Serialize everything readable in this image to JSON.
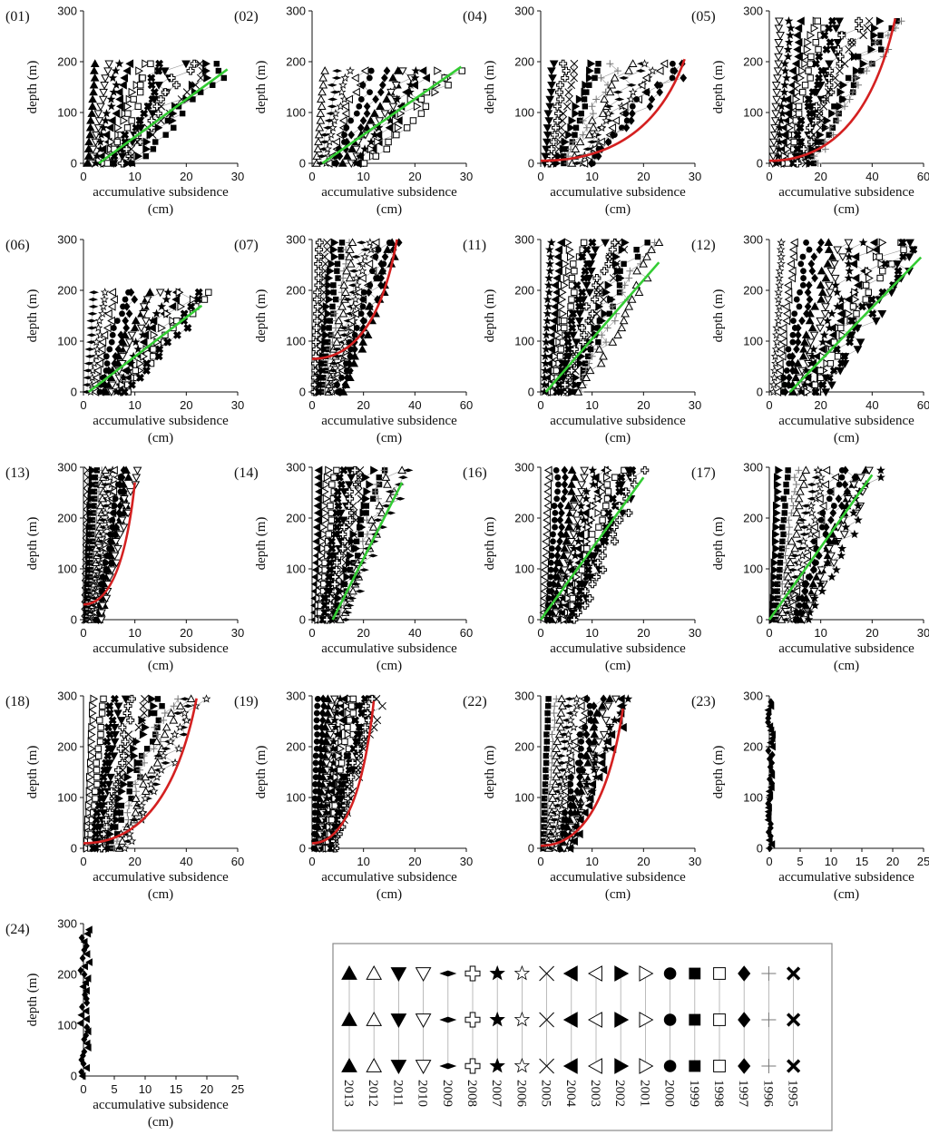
{
  "figure": {
    "xlabel_line1": "accumulative subsidence",
    "xlabel_line2": "(cm)",
    "ylabel": "depth (m)"
  },
  "colors": {
    "fit_red": "#d42020",
    "fit_green": "#33cc33",
    "axis": "#111111",
    "box": "#888888"
  },
  "chart_data": [
    {
      "id": "(01)",
      "type": "scatter",
      "xlim": [
        0,
        30
      ],
      "ylim": [
        0,
        300
      ],
      "xticks": [
        "0",
        "10",
        "20",
        "30"
      ],
      "yticks": [
        "0",
        "100",
        "200",
        "300"
      ],
      "maxdepth": 200,
      "maxsub": 28,
      "fit": {
        "kind": "linear",
        "color": "green",
        "from": [
          3,
          0
        ],
        "to": [
          28,
          185
        ]
      },
      "single_stack": false
    },
    {
      "id": "(02)",
      "type": "scatter",
      "xlim": [
        0,
        30
      ],
      "ylim": [
        0,
        300
      ],
      "xticks": [
        "0",
        "10",
        "20",
        "30"
      ],
      "yticks": [
        "0",
        "100",
        "200",
        "300"
      ],
      "maxdepth": 195,
      "maxsub": 30,
      "fit": {
        "kind": "linear",
        "color": "green",
        "from": [
          2,
          0
        ],
        "to": [
          29,
          190
        ]
      },
      "single_stack": false
    },
    {
      "id": "(04)",
      "type": "scatter",
      "xlim": [
        0,
        30
      ],
      "ylim": [
        0,
        300
      ],
      "xticks": [
        "0",
        "10",
        "20",
        "30"
      ],
      "yticks": [
        "0",
        "100",
        "200",
        "300"
      ],
      "maxdepth": 200,
      "maxsub": 29,
      "fit": {
        "kind": "curve",
        "color": "red",
        "from": [
          0,
          5
        ],
        "to": [
          28,
          205
        ]
      },
      "single_stack": false
    },
    {
      "id": "(05)",
      "type": "scatter",
      "xlim": [
        0,
        60
      ],
      "ylim": [
        0,
        300
      ],
      "xticks": [
        "0",
        "20",
        "40",
        "60"
      ],
      "yticks": [
        "0",
        "100",
        "200",
        "300"
      ],
      "maxdepth": 280,
      "maxsub": 50,
      "fit": {
        "kind": "curve",
        "color": "red",
        "from": [
          0,
          5
        ],
        "to": [
          49,
          285
        ]
      },
      "single_stack": false
    },
    {
      "id": "(06)",
      "type": "scatter",
      "xlim": [
        0,
        30
      ],
      "ylim": [
        0,
        300
      ],
      "xticks": [
        "0",
        "10",
        "20",
        "30"
      ],
      "yticks": [
        "0",
        "100",
        "200",
        "300"
      ],
      "maxdepth": 200,
      "maxsub": 25,
      "fit": {
        "kind": "linear",
        "color": "green",
        "from": [
          1,
          0
        ],
        "to": [
          23,
          170
        ]
      },
      "single_stack": false
    },
    {
      "id": "(07)",
      "type": "scatter",
      "xlim": [
        0,
        60
      ],
      "ylim": [
        0,
        300
      ],
      "xticks": [
        "0",
        "20",
        "40",
        "60"
      ],
      "yticks": [
        "0",
        "100",
        "200",
        "300"
      ],
      "maxdepth": 300,
      "maxsub": 34,
      "fit": {
        "kind": "curve",
        "color": "red",
        "from": [
          0,
          65
        ],
        "to": [
          33,
          300
        ]
      },
      "single_stack": false
    },
    {
      "id": "(11)",
      "type": "scatter",
      "xlim": [
        0,
        30
      ],
      "ylim": [
        0,
        300
      ],
      "xticks": [
        "0",
        "10",
        "20",
        "30"
      ],
      "yticks": [
        "0",
        "100",
        "200",
        "300"
      ],
      "maxdepth": 295,
      "maxsub": 23,
      "fit": {
        "kind": "linear",
        "color": "green",
        "from": [
          1,
          0
        ],
        "to": [
          23,
          255
        ]
      },
      "single_stack": false
    },
    {
      "id": "(12)",
      "type": "scatter",
      "xlim": [
        0,
        60
      ],
      "ylim": [
        0,
        300
      ],
      "xticks": [
        "0",
        "20",
        "40",
        "60"
      ],
      "yticks": [
        "0",
        "100",
        "200",
        "300"
      ],
      "maxdepth": 295,
      "maxsub": 59,
      "fit": {
        "kind": "linear",
        "color": "green",
        "from": [
          8,
          0
        ],
        "to": [
          59,
          265
        ]
      },
      "single_stack": false
    },
    {
      "id": "(13)",
      "type": "scatter",
      "xlim": [
        0,
        30
      ],
      "ylim": [
        0,
        300
      ],
      "xticks": [
        "0",
        "10",
        "20",
        "30"
      ],
      "yticks": [
        "0",
        "100",
        "200",
        "300"
      ],
      "maxdepth": 300,
      "maxsub": 10,
      "fit": {
        "kind": "curve",
        "color": "red",
        "from": [
          0,
          30
        ],
        "to": [
          10,
          270
        ]
      },
      "single_stack": false
    },
    {
      "id": "(14)",
      "type": "scatter",
      "xlim": [
        0,
        60
      ],
      "ylim": [
        0,
        300
      ],
      "xticks": [
        "0",
        "20",
        "40",
        "60"
      ],
      "yticks": [
        "0",
        "100",
        "200",
        "300"
      ],
      "maxdepth": 300,
      "maxsub": 36,
      "fit": {
        "kind": "linear",
        "color": "green",
        "from": [
          8,
          0
        ],
        "to": [
          35,
          270
        ]
      },
      "single_stack": false
    },
    {
      "id": "(16)",
      "type": "scatter",
      "xlim": [
        0,
        30
      ],
      "ylim": [
        0,
        300
      ],
      "xticks": [
        "0",
        "10",
        "20",
        "30"
      ],
      "yticks": [
        "0",
        "100",
        "200",
        "300"
      ],
      "maxdepth": 295,
      "maxsub": 20,
      "fit": {
        "kind": "linear",
        "color": "green",
        "from": [
          0,
          0
        ],
        "to": [
          20,
          280
        ]
      },
      "single_stack": false
    },
    {
      "id": "(17)",
      "type": "scatter",
      "xlim": [
        0,
        30
      ],
      "ylim": [
        0,
        300
      ],
      "xticks": [
        "0",
        "10",
        "20",
        "30"
      ],
      "yticks": [
        "0",
        "100",
        "200",
        "300"
      ],
      "maxdepth": 295,
      "maxsub": 21,
      "fit": {
        "kind": "linear",
        "color": "green",
        "from": [
          0,
          0
        ],
        "to": [
          20,
          285
        ]
      },
      "single_stack": false
    },
    {
      "id": "(18)",
      "type": "scatter",
      "xlim": [
        0,
        60
      ],
      "ylim": [
        0,
        300
      ],
      "xticks": [
        "0",
        "20",
        "40",
        "60"
      ],
      "yticks": [
        "0",
        "100",
        "200",
        "300"
      ],
      "maxdepth": 295,
      "maxsub": 46,
      "fit": {
        "kind": "curve",
        "color": "red",
        "from": [
          0,
          10
        ],
        "to": [
          44,
          295
        ]
      },
      "single_stack": false
    },
    {
      "id": "(19)",
      "type": "scatter",
      "xlim": [
        0,
        30
      ],
      "ylim": [
        0,
        300
      ],
      "xticks": [
        "0",
        "10",
        "20",
        "30"
      ],
      "yticks": [
        "0",
        "100",
        "200",
        "300"
      ],
      "maxdepth": 295,
      "maxsub": 13,
      "fit": {
        "kind": "curve",
        "color": "red",
        "from": [
          0,
          10
        ],
        "to": [
          12,
          290
        ]
      },
      "single_stack": false
    },
    {
      "id": "(22)",
      "type": "scatter",
      "xlim": [
        0,
        30
      ],
      "ylim": [
        0,
        300
      ],
      "xticks": [
        "0",
        "10",
        "20",
        "30"
      ],
      "yticks": [
        "0",
        "100",
        "200",
        "300"
      ],
      "maxdepth": 295,
      "maxsub": 17,
      "fit": {
        "kind": "curve",
        "color": "red",
        "from": [
          0,
          5
        ],
        "to": [
          16,
          275
        ]
      },
      "single_stack": false
    },
    {
      "id": "(23)",
      "type": "scatter",
      "xlim": [
        0,
        25
      ],
      "ylim": [
        0,
        300
      ],
      "xticks": [
        "0",
        "5",
        "10",
        "15",
        "20",
        "25"
      ],
      "yticks": [
        "0",
        "100",
        "200",
        "300"
      ],
      "maxdepth": 295,
      "maxsub": 1,
      "fit": null,
      "single_stack": true
    },
    {
      "id": "(24)",
      "type": "scatter",
      "xlim": [
        0,
        25
      ],
      "ylim": [
        0,
        300
      ],
      "xticks": [
        "0",
        "5",
        "10",
        "15",
        "20",
        "25"
      ],
      "yticks": [
        "0",
        "100",
        "200",
        "300"
      ],
      "maxdepth": 295,
      "maxsub": 2,
      "fit": null,
      "single_stack": true
    }
  ],
  "legend": {
    "years": [
      "2013",
      "2012",
      "2011",
      "2010",
      "2009",
      "2008",
      "2007",
      "2006",
      "2005",
      "2004",
      "2003",
      "2002",
      "2001",
      "2000",
      "1999",
      "1998",
      "1997",
      "1996",
      "1995"
    ],
    "markers": [
      "triangle-up-filled",
      "triangle-up-open",
      "triangle-down-filled",
      "triangle-down-open",
      "diamond-thin-filled",
      "cross-open",
      "star-filled",
      "star-open",
      "x-thin",
      "triangle-left-filled",
      "triangle-left-open",
      "triangle-right-filled",
      "triangle-right-open",
      "circle-filled",
      "square-filled",
      "square-open",
      "diamond-filled",
      "plus-thin",
      "x-bold"
    ]
  }
}
